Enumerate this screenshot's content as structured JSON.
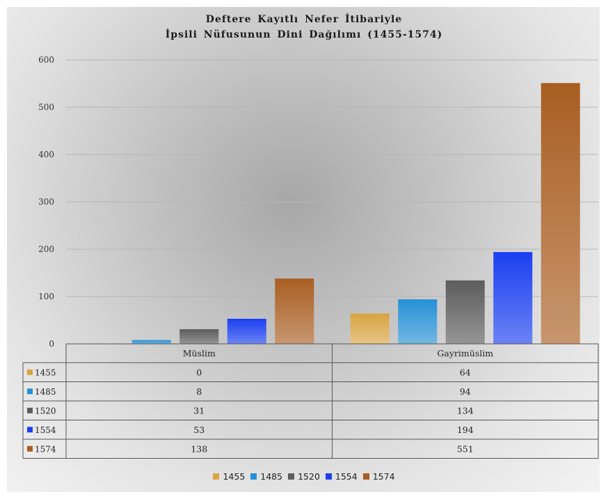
{
  "chart_data": {
    "type": "bar",
    "title": "Deftere Kayıtlı  Nefer İtibariyle",
    "subtitle": "İpsili  Nüfusunun  Dini  Dağılımı  (1455-1574)",
    "categories": [
      "Müslim",
      "Gayrimüslim"
    ],
    "series": [
      {
        "name": "1455",
        "values": [
          0,
          64
        ],
        "color": "#d9a441"
      },
      {
        "name": "1485",
        "values": [
          8,
          94
        ],
        "color": "#2690d6"
      },
      {
        "name": "1520",
        "values": [
          31,
          134
        ],
        "color": "#5c5c5c"
      },
      {
        "name": "1554",
        "values": [
          53,
          194
        ],
        "color": "#1b3ff0"
      },
      {
        "name": "1574",
        "values": [
          138,
          551
        ],
        "color": "#a95e22"
      }
    ],
    "ylim": [
      0,
      600
    ],
    "yticks": [
      0,
      100,
      200,
      300,
      400,
      500,
      600
    ],
    "grid": true,
    "legend_position": "bottom",
    "data_table": true
  }
}
